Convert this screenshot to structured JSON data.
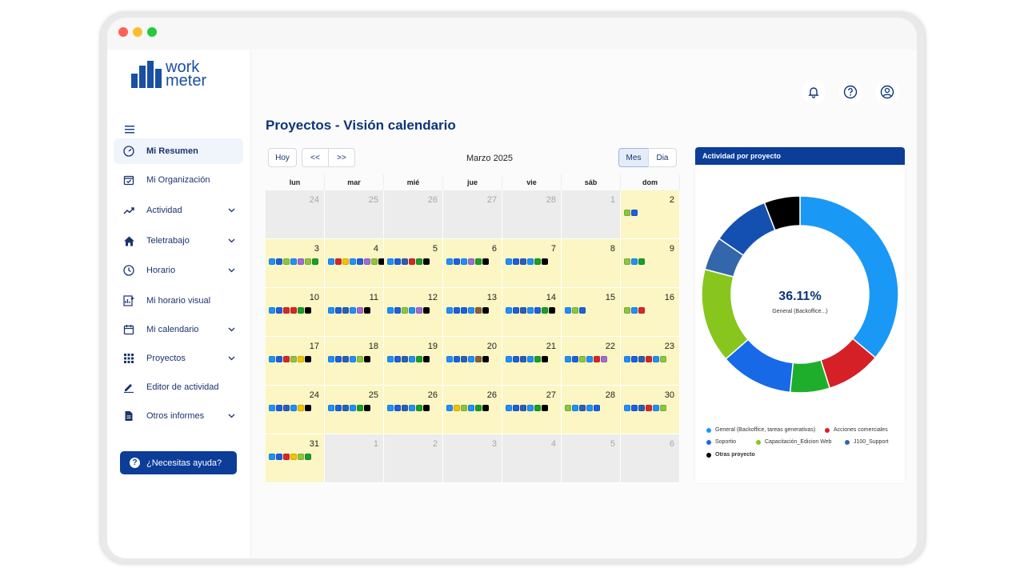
{
  "logo": {
    "line1": "work",
    "line2": "meter"
  },
  "nav": [
    {
      "label": "Mi Resumen",
      "icon": "gauge-icon",
      "chevron": false,
      "active": true
    },
    {
      "label": "Mi Organización",
      "icon": "calendar-check-icon",
      "chevron": false
    },
    {
      "label": "Actividad",
      "icon": "trend-up-icon",
      "chevron": true
    },
    {
      "label": "Teletrabajo",
      "icon": "home-icon",
      "chevron": true
    },
    {
      "label": "Horario",
      "icon": "clock-icon",
      "chevron": true
    },
    {
      "label": "Mi horario visual",
      "icon": "chart-plus-icon",
      "chevron": false
    },
    {
      "label": "Mi calendario",
      "icon": "calendar-icon",
      "chevron": true
    },
    {
      "label": "Proyectos",
      "icon": "grid-icon",
      "chevron": true
    },
    {
      "label": "Editor de actividad",
      "icon": "pencil-icon",
      "chevron": false
    },
    {
      "label": "Otros informes",
      "icon": "document-icon",
      "chevron": true
    }
  ],
  "help_button": "¿Necesitas ayuda?",
  "page_title": "Proyectos - Visión calendario",
  "toolbar": {
    "today": "Hoy",
    "prev": "<<",
    "next": ">>",
    "month_label": "Marzo 2025",
    "view_month": "Mes",
    "view_day": "Dia",
    "active_view": "Mes"
  },
  "weekdays": [
    "lun",
    "mar",
    "mié",
    "jue",
    "vie",
    "sáb",
    "dom"
  ],
  "project_colors": {
    "a": "#1e90ff",
    "b": "#1c5fe0",
    "c": "#2b5fb5",
    "d": "#d62828",
    "e": "#8cc63f",
    "f": "#1a9f2a",
    "g": "#000000",
    "h": "#a06cd5",
    "i": "#f2c200",
    "j": "#8b5e3c"
  },
  "calendar": [
    {
      "day": "24",
      "current": false,
      "projects": ""
    },
    {
      "day": "25",
      "current": false,
      "projects": ""
    },
    {
      "day": "26",
      "current": false,
      "projects": ""
    },
    {
      "day": "27",
      "current": false,
      "projects": ""
    },
    {
      "day": "28",
      "current": false,
      "projects": ""
    },
    {
      "day": "1",
      "current": false,
      "projects": ""
    },
    {
      "day": "2",
      "current": true,
      "projects": "eb"
    },
    {
      "day": "3",
      "current": true,
      "projects": "abeahef"
    },
    {
      "day": "4",
      "current": true,
      "projects": "adiabheg"
    },
    {
      "day": "5",
      "current": true,
      "projects": "abcdfg"
    },
    {
      "day": "6",
      "current": true,
      "projects": "abahfg"
    },
    {
      "day": "7",
      "current": true,
      "projects": "abcafg"
    },
    {
      "day": "8",
      "current": true,
      "projects": ""
    },
    {
      "day": "9",
      "current": true,
      "projects": "eaf"
    },
    {
      "day": "10",
      "current": true,
      "projects": "abddfg"
    },
    {
      "day": "11",
      "current": true,
      "projects": "abcahg"
    },
    {
      "day": "12",
      "current": true,
      "projects": "abeahg"
    },
    {
      "day": "13",
      "current": true,
      "projects": "abbajg"
    },
    {
      "day": "14",
      "current": true,
      "projects": "abcabfg"
    },
    {
      "day": "15",
      "current": true,
      "projects": "aeb"
    },
    {
      "day": "16",
      "current": true,
      "projects": "ead"
    },
    {
      "day": "17",
      "current": true,
      "projects": "abdeig"
    },
    {
      "day": "18",
      "current": true,
      "projects": "abcaeg"
    },
    {
      "day": "19",
      "current": true,
      "projects": "abcafg"
    },
    {
      "day": "20",
      "current": true,
      "projects": "abcajg"
    },
    {
      "day": "21",
      "current": true,
      "projects": "abcafg"
    },
    {
      "day": "22",
      "current": true,
      "projects": "abeadh"
    },
    {
      "day": "23",
      "current": true,
      "projects": "abcdae"
    },
    {
      "day": "24",
      "current": true,
      "projects": "abcaig"
    },
    {
      "day": "25",
      "current": true,
      "projects": "abcafg"
    },
    {
      "day": "26",
      "current": true,
      "projects": "abcafg"
    },
    {
      "day": "26",
      "current": true,
      "projects": "aieafg"
    },
    {
      "day": "27",
      "current": true,
      "projects": "abcafg"
    },
    {
      "day": "28",
      "current": true,
      "projects": "eacab"
    },
    {
      "day": "30",
      "current": true,
      "projects": "abcdae"
    },
    {
      "day": "31",
      "current": true,
      "projects": "abdief"
    },
    {
      "day": "1",
      "current": false,
      "projects": ""
    },
    {
      "day": "2",
      "current": false,
      "projects": ""
    },
    {
      "day": "3",
      "current": false,
      "projects": ""
    },
    {
      "day": "4",
      "current": false,
      "projects": ""
    },
    {
      "day": "5",
      "current": false,
      "projects": ""
    },
    {
      "day": "6",
      "current": false,
      "projects": ""
    }
  ],
  "panel_title": "Actividad por proyecto",
  "chart_data": {
    "type": "pie",
    "center_value": "36.11%",
    "center_label": "General (Backoffice...)",
    "slices": [
      {
        "name": "General (Backoffice, tareas generativas)",
        "value": 36.11,
        "color": "#1a98f5"
      },
      {
        "name": "Acciones comerciales",
        "value": 9.0,
        "color": "#d52027"
      },
      {
        "name": "",
        "value": 6.5,
        "color": "#1fae2c"
      },
      {
        "name": "",
        "value": 12.0,
        "color": "#1769e8"
      },
      {
        "name": "Capacitación_Edicion Web",
        "value": 15.5,
        "color": "#88c61e"
      },
      {
        "name": "J100_Support",
        "value": 5.5,
        "color": "#3366aa"
      },
      {
        "name": "",
        "value": 9.5,
        "color": "#1450b0"
      },
      {
        "name": "Otras proyecto",
        "value": 5.89,
        "color": "#000000"
      }
    ],
    "legend": [
      {
        "label": "General (Backoffice, tareas generativas)",
        "color": "#1a98f5",
        "bold": false
      },
      {
        "label": "Acciones comerciales",
        "color": "#d52027",
        "bold": false
      },
      {
        "label": "Soportio",
        "color": "#1769e8",
        "bold": false
      },
      {
        "label": "Capacitación_Edicion Web",
        "color": "#88c61e",
        "bold": false
      },
      {
        "label": "J100_Support",
        "color": "#3366aa",
        "bold": false
      },
      {
        "label": "Otras proyecto",
        "color": "#000000",
        "bold": true
      }
    ]
  }
}
